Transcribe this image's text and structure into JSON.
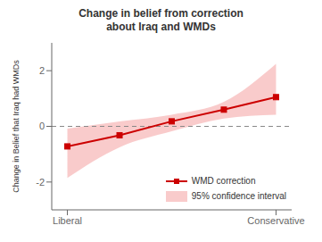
{
  "chart_data": {
    "type": "line",
    "title": "Change in belief from correction\nabout Iraq and WMDs",
    "y_label": "Change in Belief that Iraq had WMDs",
    "x": [
      1,
      2,
      3,
      4,
      5
    ],
    "xlim": [
      0.7,
      5.3
    ],
    "xticks": [
      {
        "value": 1,
        "label": "Liberal"
      },
      {
        "value": 5,
        "label": "Conservative"
      }
    ],
    "ylim": [
      -3.0,
      3.0
    ],
    "yticks": [
      -2,
      0,
      2
    ],
    "series": [
      {
        "name": "WMD correction",
        "type": "line",
        "color": "#cc0000",
        "marker": "square",
        "values": [
          -0.72,
          -0.32,
          0.18,
          0.6,
          1.05
        ]
      },
      {
        "name": "95% confidence interval",
        "type": "area",
        "color": "#f4a0a0",
        "lower": [
          -1.85,
          -0.75,
          -0.18,
          0.28,
          0.42
        ],
        "upper": [
          -0.08,
          0.18,
          0.42,
          0.88,
          2.25
        ]
      }
    ],
    "reference_lines": [
      {
        "y": 0,
        "color": "#888888",
        "line_style": "dashed"
      }
    ],
    "legend": "lower right",
    "grid": false
  }
}
